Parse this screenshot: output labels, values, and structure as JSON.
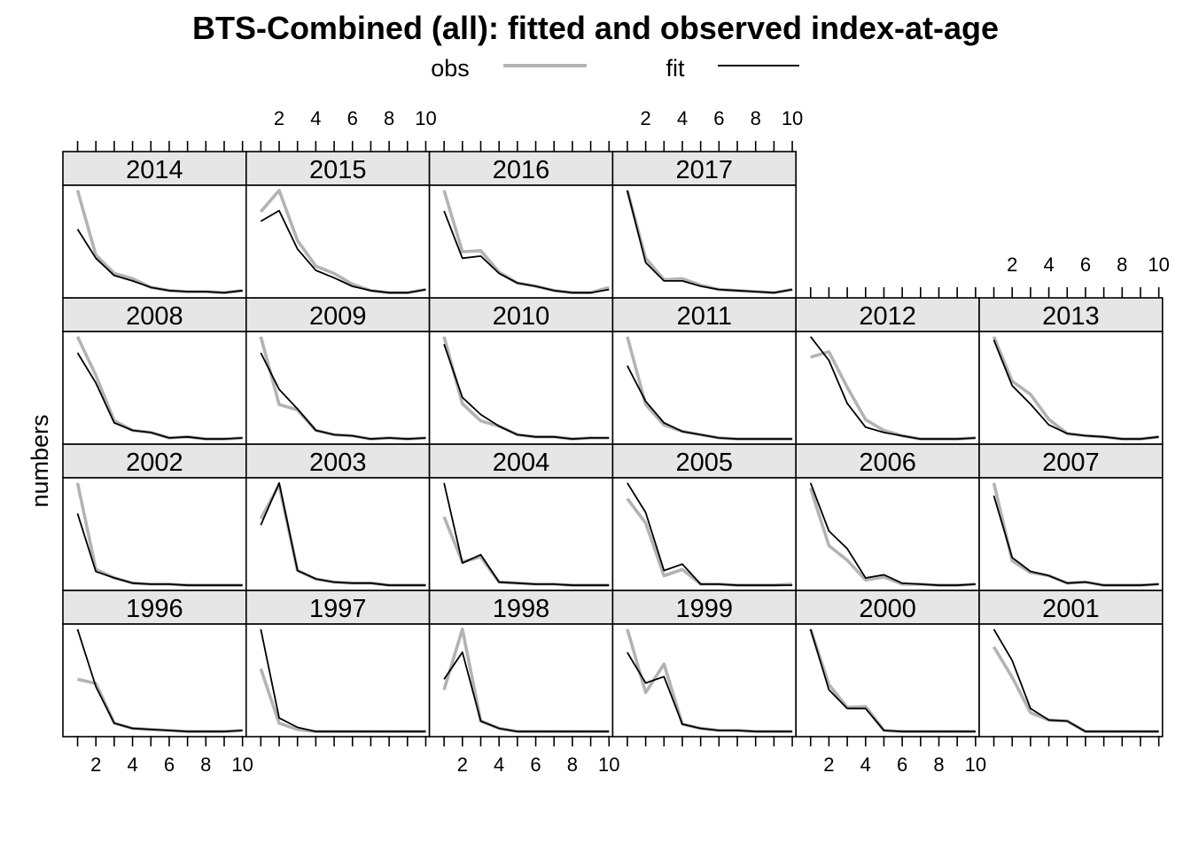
{
  "chart_data": {
    "type": "line",
    "title": "BTS-Combined (all): fitted and observed index-at-age",
    "xlabel": "",
    "ylabel": "numbers",
    "xlim": [
      0.2,
      10.2
    ],
    "x_ticks": [
      2,
      4,
      6,
      8,
      10
    ],
    "x": [
      1,
      2,
      3,
      4,
      5,
      6,
      7,
      8,
      9,
      10
    ],
    "y_scale": "free per panel, no y tick labels",
    "grid": false,
    "legend": {
      "placement": "top",
      "entries": [
        {
          "name": "obs",
          "color": "#b3b3b3"
        },
        {
          "name": "fit",
          "color": "#000000"
        }
      ]
    },
    "layout": {
      "columns": 6,
      "rows": 4
    },
    "panels": [
      {
        "year": "1996",
        "obs": [
          0.52,
          0.48,
          0.1,
          0.05,
          0.04,
          0.03,
          0.02,
          0.02,
          0.02,
          0.03
        ],
        "fit": [
          1.0,
          0.45,
          0.1,
          0.05,
          0.04,
          0.03,
          0.02,
          0.02,
          0.02,
          0.03
        ]
      },
      {
        "year": "1997",
        "obs": [
          0.62,
          0.1,
          0.04,
          0.02,
          0.02,
          0.02,
          0.02,
          0.02,
          0.02,
          0.02
        ],
        "fit": [
          1.0,
          0.15,
          0.06,
          0.02,
          0.02,
          0.02,
          0.02,
          0.02,
          0.02,
          0.02
        ]
      },
      {
        "year": "1998",
        "obs": [
          0.42,
          1.0,
          0.12,
          0.05,
          0.02,
          0.02,
          0.02,
          0.02,
          0.02,
          0.02
        ],
        "fit": [
          0.52,
          0.78,
          0.12,
          0.05,
          0.02,
          0.02,
          0.02,
          0.02,
          0.02,
          0.02
        ]
      },
      {
        "year": "1999",
        "obs": [
          1.0,
          0.4,
          0.67,
          0.1,
          0.06,
          0.04,
          0.04,
          0.03,
          0.03,
          0.03
        ],
        "fit": [
          0.78,
          0.49,
          0.55,
          0.1,
          0.06,
          0.04,
          0.04,
          0.03,
          0.03,
          0.03
        ]
      },
      {
        "year": "2000",
        "obs": [
          1.0,
          0.47,
          0.25,
          0.26,
          0.03,
          0.02,
          0.02,
          0.02,
          0.02,
          0.02
        ],
        "fit": [
          1.0,
          0.42,
          0.24,
          0.24,
          0.03,
          0.02,
          0.02,
          0.02,
          0.02,
          0.02
        ]
      },
      {
        "year": "2001",
        "obs": [
          0.83,
          0.54,
          0.2,
          0.13,
          0.12,
          0.02,
          0.02,
          0.02,
          0.02,
          0.02
        ],
        "fit": [
          1.0,
          0.7,
          0.24,
          0.13,
          0.12,
          0.02,
          0.02,
          0.02,
          0.02,
          0.02
        ]
      },
      {
        "year": "2002",
        "obs": [
          1.0,
          0.18,
          0.1,
          0.05,
          0.04,
          0.04,
          0.03,
          0.03,
          0.03,
          0.03
        ],
        "fit": [
          0.71,
          0.16,
          0.1,
          0.05,
          0.04,
          0.04,
          0.03,
          0.03,
          0.03,
          0.03
        ]
      },
      {
        "year": "2003",
        "obs": [
          0.66,
          0.98,
          0.17,
          0.09,
          0.06,
          0.05,
          0.05,
          0.03,
          0.03,
          0.03
        ],
        "fit": [
          0.6,
          1.0,
          0.17,
          0.09,
          0.06,
          0.05,
          0.05,
          0.03,
          0.03,
          0.03
        ]
      },
      {
        "year": "2004",
        "obs": [
          0.68,
          0.25,
          0.3,
          0.06,
          0.05,
          0.04,
          0.04,
          0.03,
          0.03,
          0.03
        ],
        "fit": [
          1.0,
          0.24,
          0.32,
          0.06,
          0.05,
          0.04,
          0.04,
          0.03,
          0.03,
          0.03
        ]
      },
      {
        "year": "2005",
        "obs": [
          0.85,
          0.62,
          0.12,
          0.18,
          0.04,
          0.04,
          0.03,
          0.03,
          0.03,
          0.04
        ],
        "fit": [
          1.0,
          0.72,
          0.17,
          0.23,
          0.04,
          0.04,
          0.03,
          0.03,
          0.03,
          0.03
        ]
      },
      {
        "year": "2006",
        "obs": [
          0.95,
          0.4,
          0.26,
          0.07,
          0.1,
          0.03,
          0.03,
          0.02,
          0.02,
          0.03
        ],
        "fit": [
          1.0,
          0.54,
          0.37,
          0.09,
          0.12,
          0.04,
          0.03,
          0.02,
          0.02,
          0.03
        ]
      },
      {
        "year": "2007",
        "obs": [
          1.0,
          0.27,
          0.16,
          0.13,
          0.06,
          0.07,
          0.04,
          0.04,
          0.04,
          0.05
        ],
        "fit": [
          0.88,
          0.3,
          0.17,
          0.13,
          0.06,
          0.07,
          0.04,
          0.04,
          0.04,
          0.05
        ]
      },
      {
        "year": "2008",
        "obs": [
          1.0,
          0.64,
          0.22,
          0.13,
          0.11,
          0.06,
          0.07,
          0.05,
          0.05,
          0.06
        ],
        "fit": [
          0.85,
          0.57,
          0.2,
          0.13,
          0.11,
          0.06,
          0.07,
          0.05,
          0.05,
          0.06
        ]
      },
      {
        "year": "2009",
        "obs": [
          1.0,
          0.37,
          0.32,
          0.13,
          0.09,
          0.08,
          0.05,
          0.06,
          0.05,
          0.06
        ],
        "fit": [
          0.85,
          0.51,
          0.33,
          0.13,
          0.09,
          0.08,
          0.05,
          0.06,
          0.05,
          0.06
        ]
      },
      {
        "year": "2010",
        "obs": [
          1.0,
          0.37,
          0.21,
          0.16,
          0.08,
          0.06,
          0.06,
          0.04,
          0.05,
          0.05
        ],
        "fit": [
          0.93,
          0.43,
          0.27,
          0.16,
          0.08,
          0.06,
          0.06,
          0.04,
          0.05,
          0.05
        ]
      },
      {
        "year": "2011",
        "obs": [
          1.0,
          0.37,
          0.18,
          0.12,
          0.09,
          0.06,
          0.05,
          0.05,
          0.05,
          0.05
        ],
        "fit": [
          0.73,
          0.4,
          0.2,
          0.12,
          0.09,
          0.06,
          0.05,
          0.05,
          0.05,
          0.05
        ]
      },
      {
        "year": "2012",
        "obs": [
          0.81,
          0.86,
          0.53,
          0.23,
          0.13,
          0.08,
          0.05,
          0.05,
          0.05,
          0.06
        ],
        "fit": [
          1.0,
          0.78,
          0.38,
          0.16,
          0.11,
          0.08,
          0.05,
          0.05,
          0.05,
          0.06
        ]
      },
      {
        "year": "2013",
        "obs": [
          1.0,
          0.59,
          0.47,
          0.24,
          0.11,
          0.09,
          0.08,
          0.06,
          0.06,
          0.08
        ],
        "fit": [
          0.97,
          0.55,
          0.38,
          0.19,
          0.11,
          0.09,
          0.08,
          0.06,
          0.06,
          0.08
        ]
      },
      {
        "year": "2014",
        "obs": [
          1.0,
          0.4,
          0.23,
          0.18,
          0.1,
          0.07,
          0.06,
          0.06,
          0.05,
          0.07
        ],
        "fit": [
          0.64,
          0.37,
          0.21,
          0.16,
          0.1,
          0.07,
          0.06,
          0.06,
          0.05,
          0.07
        ]
      },
      {
        "year": "2015",
        "obs": [
          0.8,
          1.0,
          0.53,
          0.29,
          0.22,
          0.12,
          0.06,
          0.04,
          0.04,
          0.07
        ],
        "fit": [
          0.71,
          0.81,
          0.45,
          0.25,
          0.18,
          0.1,
          0.06,
          0.04,
          0.04,
          0.07
        ]
      },
      {
        "year": "2016",
        "obs": [
          1.0,
          0.43,
          0.44,
          0.24,
          0.14,
          0.11,
          0.07,
          0.05,
          0.05,
          0.1
        ],
        "fit": [
          0.81,
          0.37,
          0.39,
          0.23,
          0.14,
          0.11,
          0.07,
          0.05,
          0.05,
          0.08
        ]
      },
      {
        "year": "2017",
        "obs": [
          1.0,
          0.37,
          0.17,
          0.18,
          0.12,
          0.08,
          0.07,
          0.06,
          0.05,
          0.08
        ],
        "fit": [
          1.0,
          0.33,
          0.16,
          0.16,
          0.11,
          0.08,
          0.07,
          0.06,
          0.05,
          0.08
        ]
      }
    ]
  }
}
